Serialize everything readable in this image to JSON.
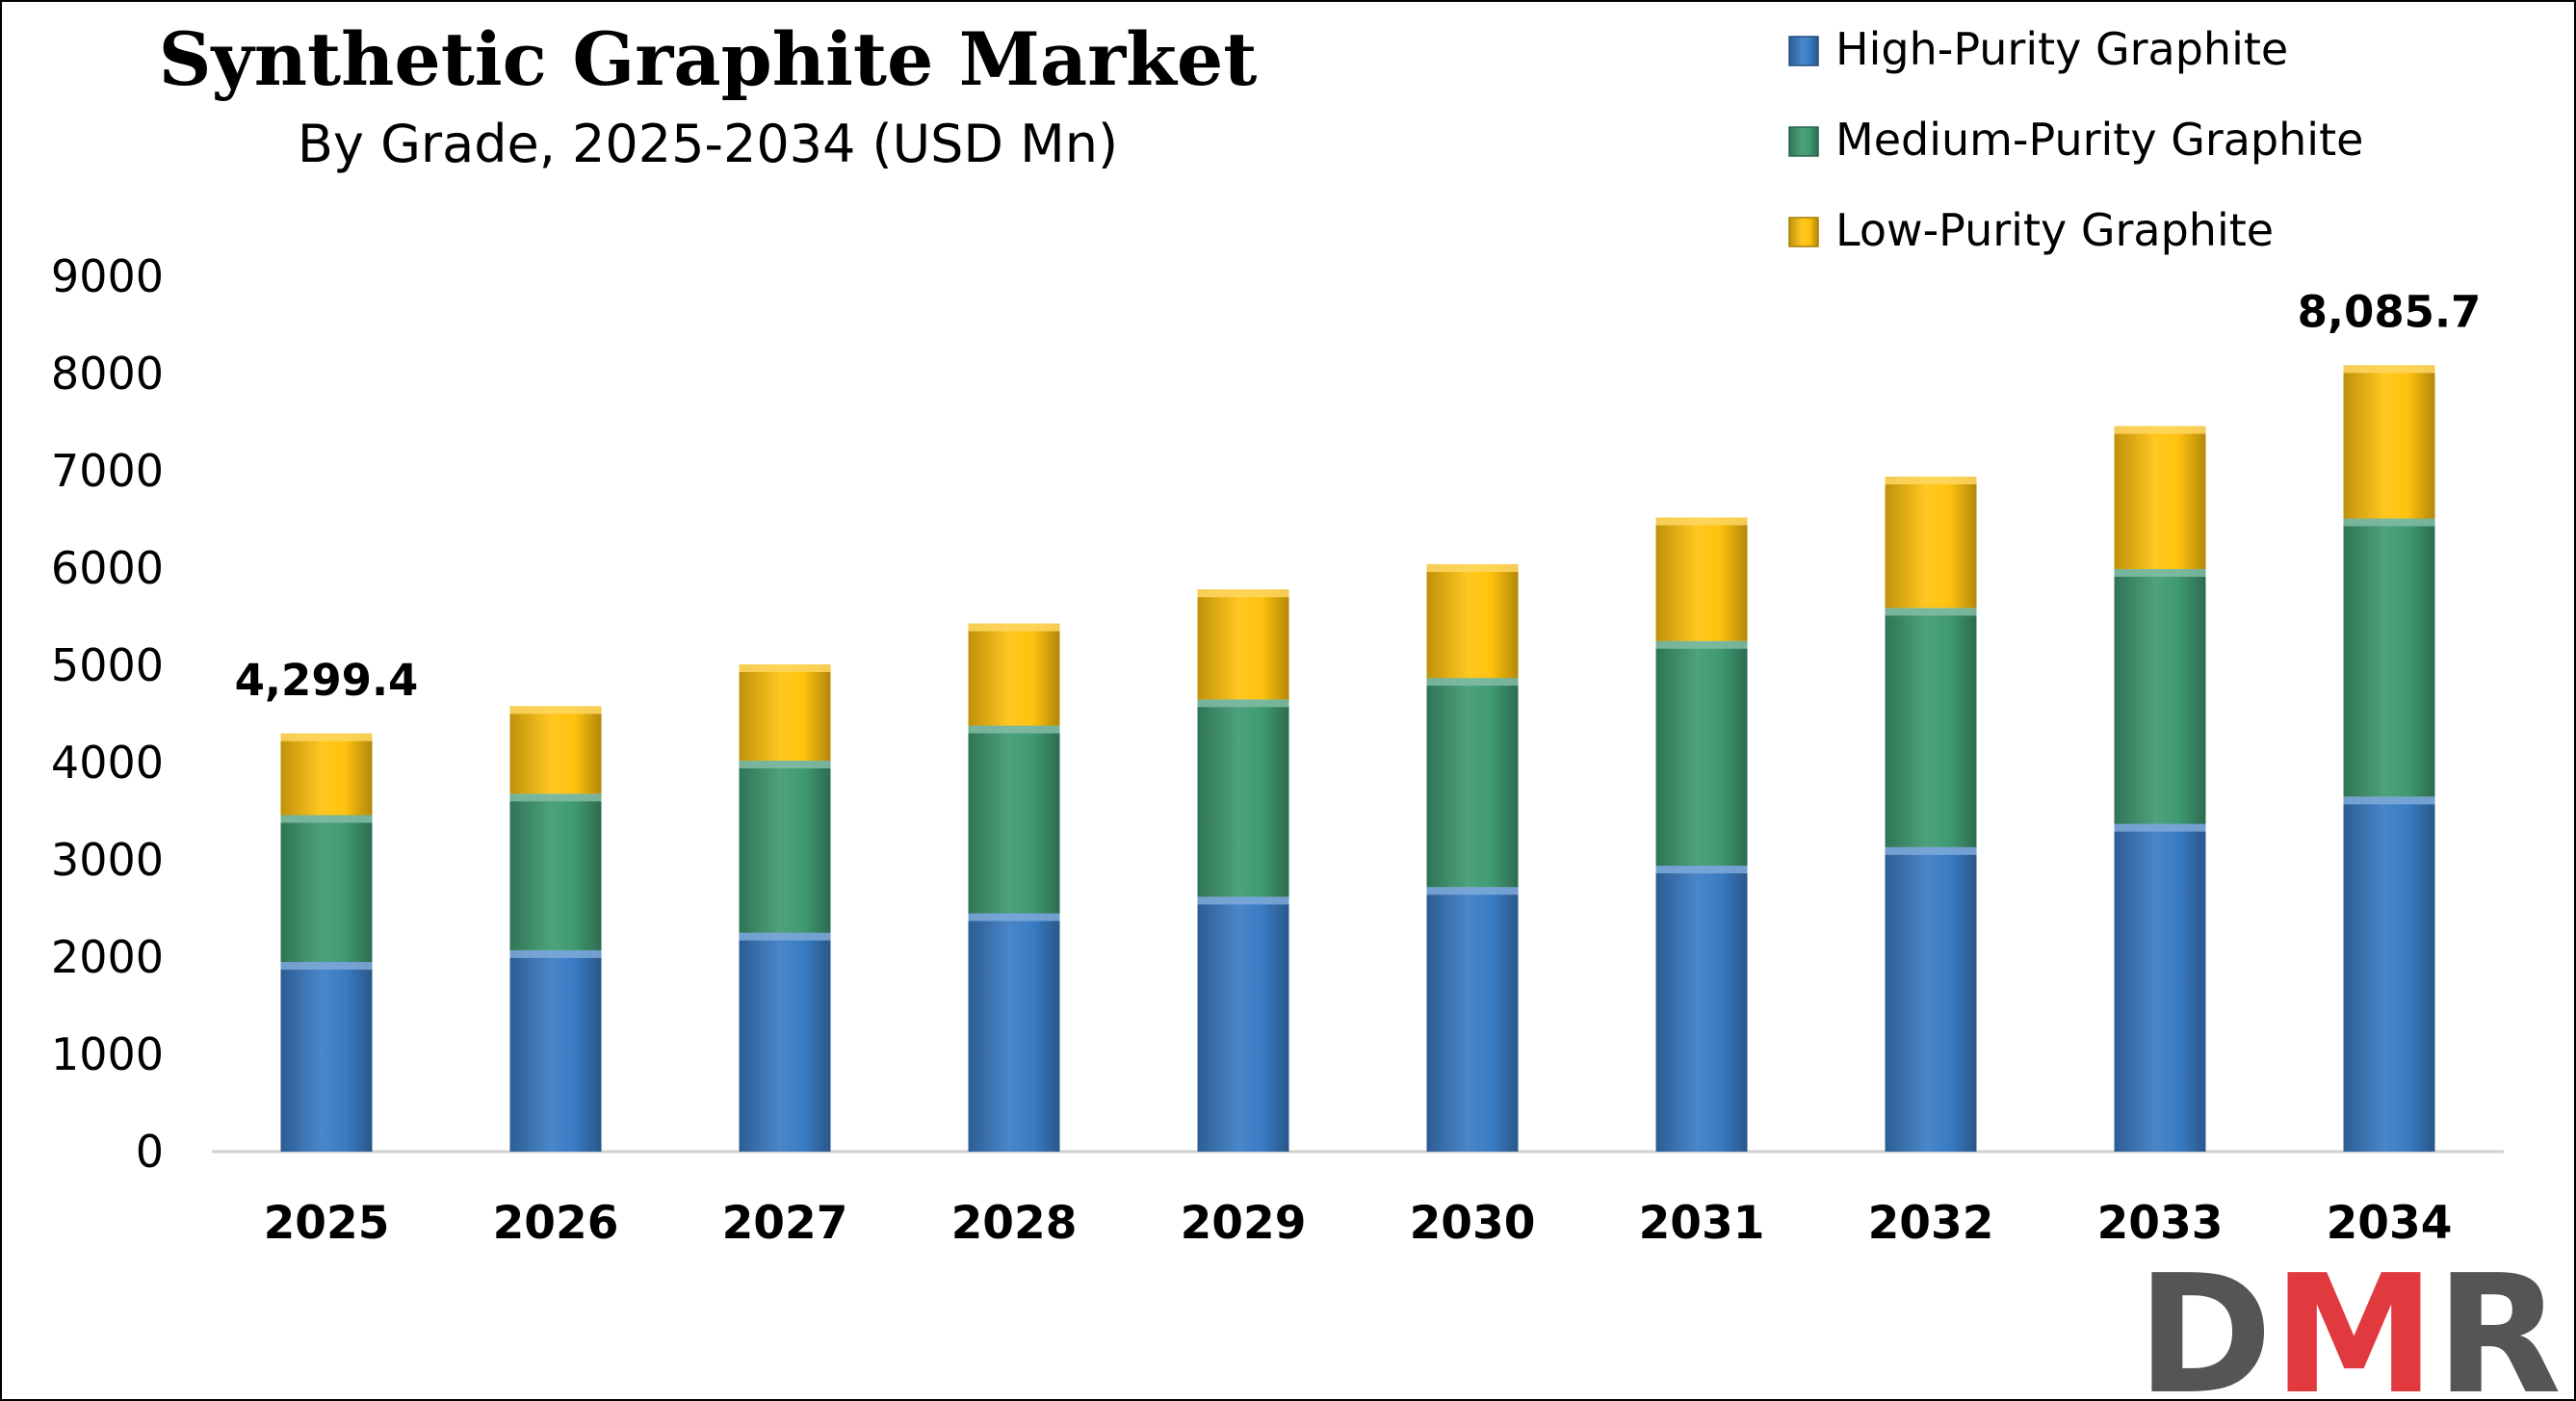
{
  "chart_data": {
    "type": "bar",
    "stacked": true,
    "title": "Synthetic Graphite Market",
    "subtitle": "By Grade, 2025-2034 (USD Mn)",
    "xlabel": "",
    "ylabel": "",
    "ylim": [
      0,
      9000
    ],
    "yticks": [
      0,
      1000,
      2000,
      3000,
      4000,
      5000,
      6000,
      7000,
      8000,
      9000
    ],
    "categories": [
      "2025",
      "2026",
      "2027",
      "2028",
      "2029",
      "2030",
      "2031",
      "2032",
      "2033",
      "2034"
    ],
    "series": [
      {
        "name": "High-Purity Graphite",
        "color": "#3a7cc4",
        "values": [
          1950,
          2070,
          2250,
          2450,
          2620,
          2720,
          2940,
          3130,
          3370,
          3650
        ]
      },
      {
        "name": "Medium-Purity Graphite",
        "color": "#3f9a72",
        "values": [
          1510,
          1610,
          1770,
          1930,
          2030,
          2150,
          2310,
          2460,
          2620,
          2860
        ]
      },
      {
        "name": "Low-Purity Graphite",
        "color": "#ffc20e",
        "values": [
          839.4,
          900,
          990,
          1050,
          1130,
          1170,
          1270,
          1350,
          1470,
          1575.7
        ]
      }
    ],
    "data_labels": [
      {
        "category": "2025",
        "text": "4,299.4"
      },
      {
        "category": "2034",
        "text": "8,085.7"
      }
    ],
    "legend_position": "top-right",
    "grid": false
  },
  "logo": {
    "text": "DMR",
    "color_dark": "#555555",
    "color_accent": "#e0393e"
  }
}
